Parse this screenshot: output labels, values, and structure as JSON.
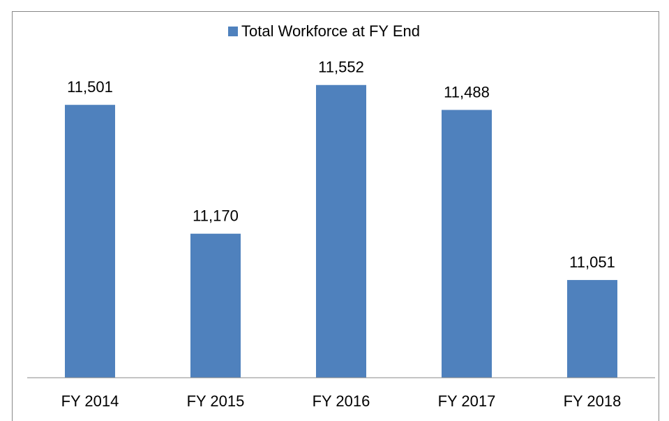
{
  "chart_data": {
    "type": "bar",
    "categories": [
      "FY 2014",
      "FY 2015",
      "FY 2016",
      "FY 2017",
      "FY 2018"
    ],
    "series": [
      {
        "name": "Total Workforce at FY End",
        "color": "#4f81bd",
        "values": [
          11501,
          11170,
          11552,
          11488,
          11051
        ],
        "value_labels": [
          "11,501",
          "11,170",
          "11,552",
          "11,488",
          "11,051"
        ]
      }
    ],
    "ylim": [
      10800,
      11600
    ],
    "legend": "top"
  }
}
